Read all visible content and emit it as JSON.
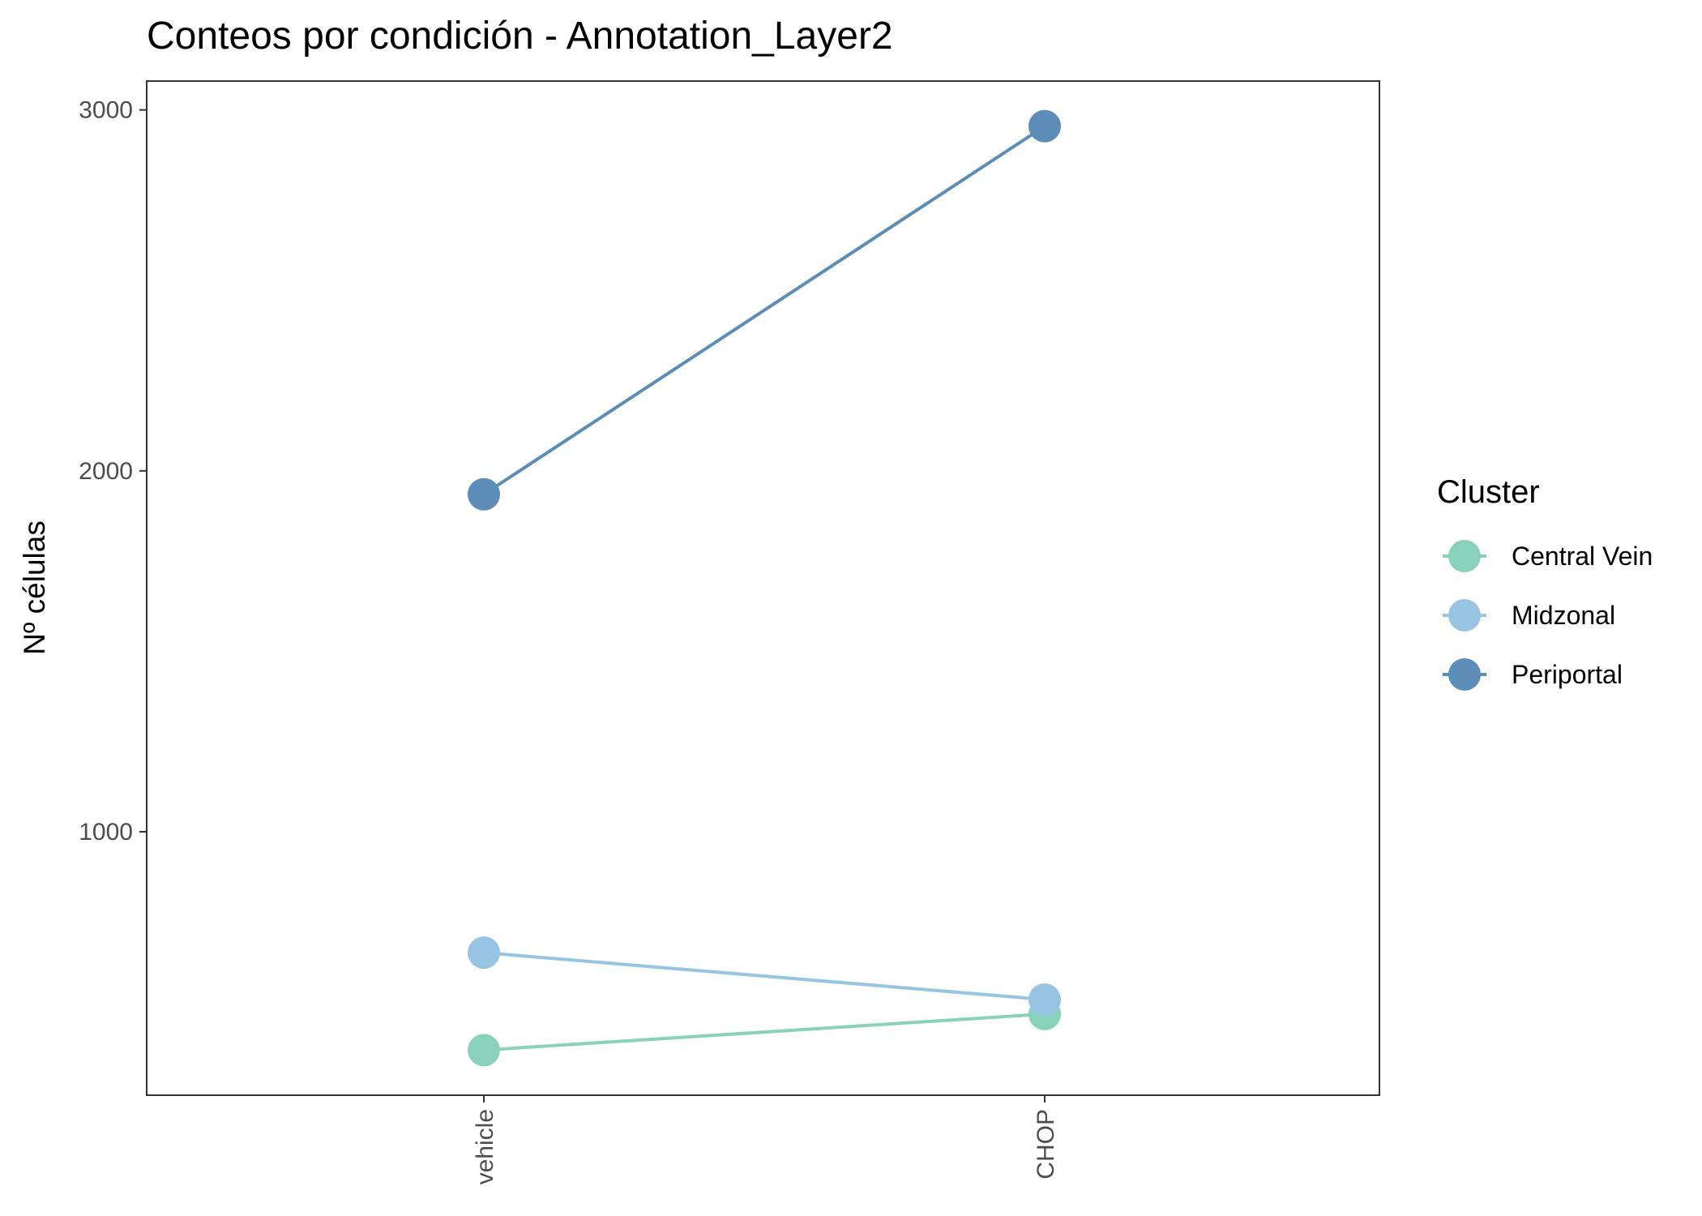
{
  "chart_data": {
    "type": "line",
    "title": "Conteos por condición - Annotation_Layer2",
    "xlabel": "",
    "ylabel": "Nº células",
    "categories": [
      "vehicle",
      "CHOP"
    ],
    "y_ticks": [
      1000,
      2000,
      3000
    ],
    "ylim": [
      270,
      3080
    ],
    "grid": false,
    "legend": {
      "title": "Cluster",
      "position": "right"
    },
    "series": [
      {
        "name": "Central Vein",
        "color": "#88D1BA",
        "values": [
          395,
          495
        ]
      },
      {
        "name": "Midzonal",
        "color": "#98C4E4",
        "values": [
          665,
          535
        ]
      },
      {
        "name": "Periportal",
        "color": "#5B8DB8",
        "values": [
          1935,
          2955
        ]
      }
    ]
  }
}
